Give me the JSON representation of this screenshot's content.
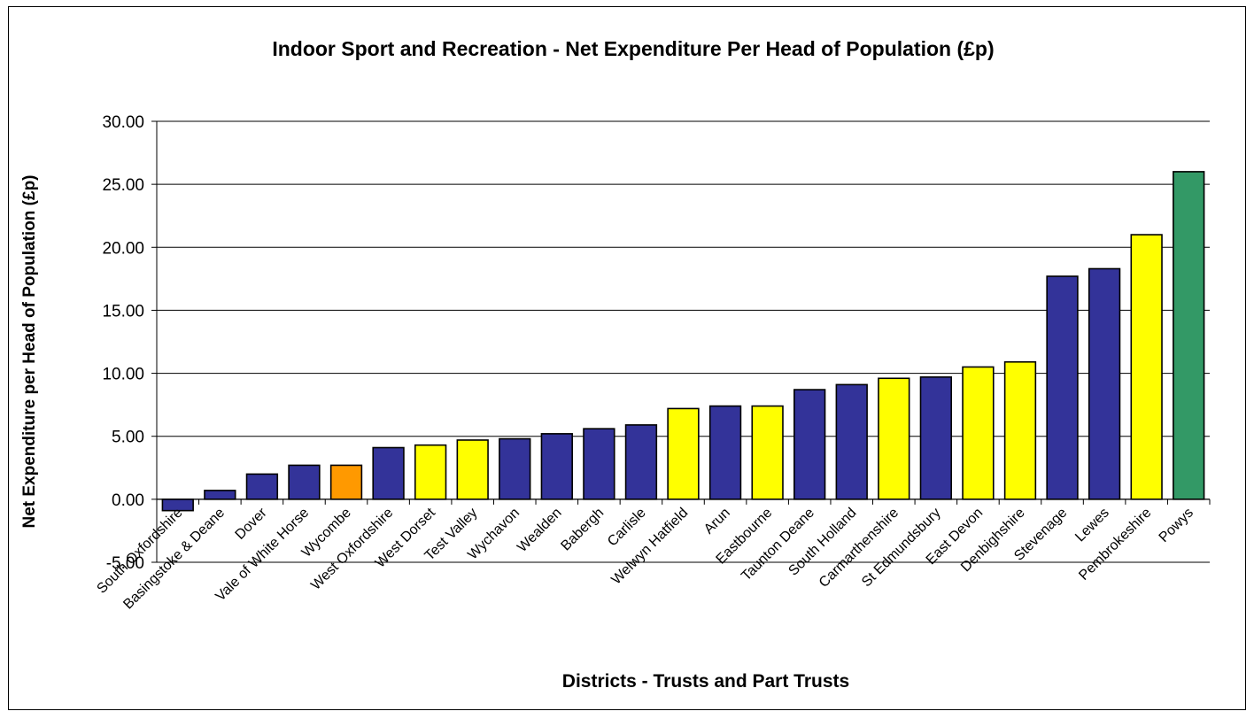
{
  "chart_data": {
    "type": "bar",
    "title": "Indoor Sport and Recreation - Net Expenditure Per Head of Population (£p)",
    "xlabel": "Districts - Trusts and Part Trusts",
    "ylabel": "Net Expenditure per Head of Population (£p)",
    "ylim": [
      -5,
      30
    ],
    "yticks": [
      "-5.00",
      "0.00",
      "5.00",
      "10.00",
      "15.00",
      "20.00",
      "25.00",
      "30.00"
    ],
    "grid": true,
    "categories": [
      "South Oxfordshire",
      "Basingstoke & Deane",
      "Dover",
      "Vale of White Horse",
      "Wycombe",
      "West Oxfordshire",
      "West Dorset",
      "Test Valley",
      "Wychavon",
      "Wealden",
      "Babergh",
      "Carlisle",
      "Welwyn Hatfield",
      "Arun",
      "Eastbourne",
      "Taunton Deane",
      "South Holland",
      "Carmarthenshire",
      "St Edmundsbury",
      "East Devon",
      "Denbighshire",
      "Stevenage",
      "Lewes",
      "Pembrokeshire",
      "Powys"
    ],
    "values": [
      -0.9,
      0.7,
      2.0,
      2.7,
      2.7,
      4.1,
      4.3,
      4.7,
      4.8,
      5.2,
      5.6,
      5.9,
      7.2,
      7.4,
      7.4,
      8.7,
      9.1,
      9.6,
      9.7,
      10.5,
      10.9,
      17.7,
      18.3,
      21.0,
      26.0
    ],
    "bar_colors": [
      "#333399",
      "#333399",
      "#333399",
      "#333399",
      "#FF9900",
      "#333399",
      "#FFFF00",
      "#FFFF00",
      "#333399",
      "#333399",
      "#333399",
      "#333399",
      "#FFFF00",
      "#333399",
      "#FFFF00",
      "#333399",
      "#333399",
      "#FFFF00",
      "#333399",
      "#FFFF00",
      "#FFFF00",
      "#333399",
      "#333399",
      "#FFFF00",
      "#339966"
    ]
  }
}
